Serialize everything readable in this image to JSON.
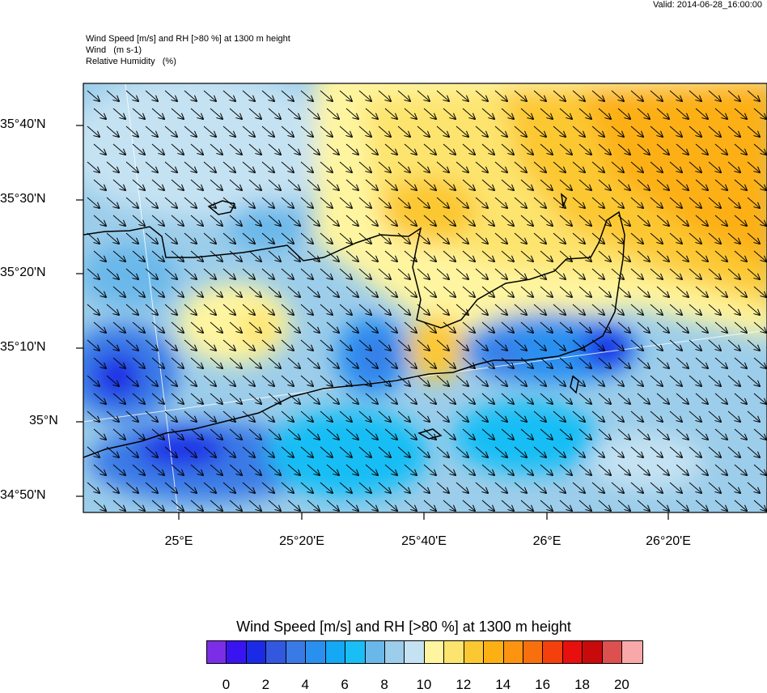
{
  "valid_time": "Valid: 2014-06-28_16:00:00",
  "titles": [
    "Wind Speed [m/s] and RH [>80 %] at 1300 m height",
    "Wind   (m s-1)",
    "Relative Humidity   (%)"
  ],
  "lat_labels": [
    "35°40'N",
    "35°30'N",
    "35°20'N",
    "35°10'N",
    "35°N",
    "34°50'N"
  ],
  "lon_labels": [
    "25°E",
    "25°20'E",
    "25°40'E",
    "26°E",
    "26°20'E"
  ],
  "colorbar": {
    "title": "Wind Speed [m/s] and RH [>80 %] at 1300 m height",
    "colors": [
      "#7b2ee6",
      "#3a14f0",
      "#1a2ae6",
      "#3358e0",
      "#3a7ae6",
      "#2a90f0",
      "#14a8f5",
      "#19bef5",
      "#6ab8ea",
      "#9ccdea",
      "#c4e2f2",
      "#fff5a0",
      "#fde46e",
      "#fcc832",
      "#fcb014",
      "#fc9410",
      "#f8700e",
      "#f4400c",
      "#e8100e",
      "#c80a0a",
      "#dc5050",
      "#f8a8a8"
    ],
    "ticks": [
      "0",
      "2",
      "4",
      "6",
      "8",
      "10",
      "12",
      "14",
      "16",
      "18",
      "20"
    ]
  }
}
